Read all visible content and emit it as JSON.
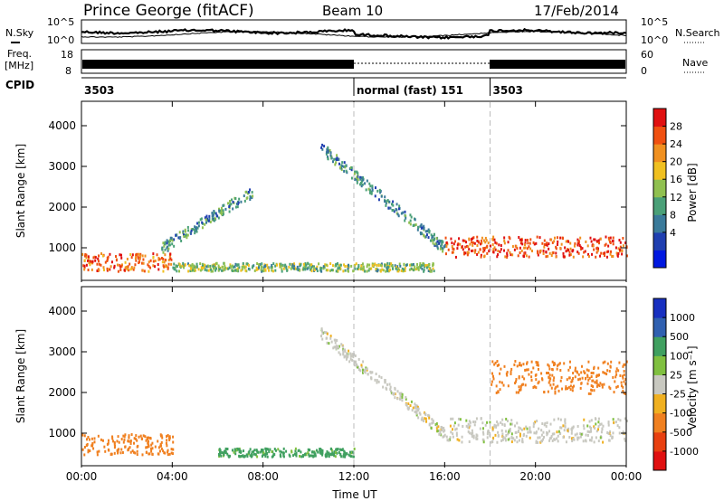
{
  "header": {
    "station": "Prince George (fitACF)",
    "beam": "Beam 10",
    "date": "17/Feb/2014"
  },
  "noise_panel": {
    "left_label": "N.Sky",
    "right_label": "N.Search",
    "left_ticks": [
      "10^5",
      "10^0"
    ],
    "right_ticks": [
      "10^5",
      "10^0"
    ]
  },
  "freq_panel": {
    "left_label_1": "Freq.",
    "left_label_2": "[MHz]",
    "right_label": "Nave",
    "left_ticks": [
      "18",
      "8"
    ],
    "right_ticks": [
      "60",
      "0"
    ]
  },
  "cpid": {
    "label": "CPID",
    "segments": [
      {
        "label": "3503",
        "start_hour": 0
      },
      {
        "label": "normal (fast) 151",
        "start_hour": 12
      },
      {
        "label": "3503",
        "start_hour": 18
      }
    ]
  },
  "time_axis": {
    "label": "Time UT",
    "ticks": [
      "00:00",
      "04:00",
      "08:00",
      "12:00",
      "16:00",
      "20:00",
      "00:00"
    ]
  },
  "power_panel": {
    "ylabel": "Slant Range [km]",
    "yticks": [
      "4000",
      "3000",
      "2000",
      "1000"
    ],
    "colorbar_label": "Power [dB]",
    "colorbar_ticks": [
      "28",
      "24",
      "20",
      "16",
      "12",
      "8",
      "4"
    ],
    "colors": [
      "#0018e0",
      "#1f3fb0",
      "#3a7a9a",
      "#4aa078",
      "#90c050",
      "#f0c020",
      "#f09020",
      "#f05010",
      "#e01010"
    ]
  },
  "velocity_panel": {
    "ylabel": "Slant Range [km]",
    "yticks": [
      "4000",
      "3000",
      "2000",
      "1000"
    ],
    "colorbar_label": "Velocity [m s⁻¹]",
    "colorbar_ticks": [
      "1000",
      "500",
      "100",
      "25",
      "-25",
      "-100",
      "-500",
      "-1000"
    ],
    "colors": [
      "#1830c0",
      "#3060b0",
      "#40a060",
      "#80c040",
      "#c8c8c0",
      "#f0b020",
      "#f08020",
      "#e84010",
      "#e01010"
    ]
  },
  "chart_data": [
    {
      "type": "heatmap",
      "title": "Power",
      "xlabel": "Time UT",
      "ylabel": "Slant Range [km]",
      "xlim_hours": [
        0,
        24
      ],
      "ylim": [
        200,
        4600
      ],
      "colorbar_range": [
        0,
        30
      ],
      "colorbar_label": "Power [dB]",
      "features": [
        {
          "name": "near-range band",
          "hours": [
            0,
            4
          ],
          "range_km": [
            450,
            900
          ],
          "power_db": 24
        },
        {
          "name": "near-range band",
          "hours": [
            4,
            15.5
          ],
          "range_km": [
            450,
            650
          ],
          "power_db": 14
        },
        {
          "name": "rising arc",
          "hours": [
            3.5,
            7.5
          ],
          "range_km": [
            1000,
            2400
          ],
          "power_db": 10
        },
        {
          "name": "descending arc",
          "hours": [
            10.5,
            16
          ],
          "range_km": [
            3500,
            1000
          ],
          "power_db": 10
        },
        {
          "name": "late band",
          "hours": [
            16,
            24
          ],
          "range_km": [
            800,
            1300
          ],
          "power_db": 26
        }
      ]
    },
    {
      "type": "heatmap",
      "title": "Velocity",
      "xlabel": "Time UT",
      "ylabel": "Slant Range [km]",
      "xlim_hours": [
        0,
        24
      ],
      "ylim": [
        200,
        4600
      ],
      "colorbar_label": "Velocity [m s⁻¹]",
      "colorbar_ticks": [
        1000,
        500,
        100,
        25,
        -25,
        -100,
        -500,
        -1000
      ],
      "features": [
        {
          "name": "near-range band",
          "hours": [
            0,
            4
          ],
          "range_km": [
            500,
            1000
          ],
          "velocity": -150
        },
        {
          "name": "near-range band",
          "hours": [
            6,
            12
          ],
          "range_km": [
            450,
            650
          ],
          "velocity": 120
        },
        {
          "name": "descending arc",
          "hours": [
            10.5,
            16
          ],
          "range_km": [
            3500,
            1000
          ],
          "velocity": 0
        },
        {
          "name": "late band",
          "hours": [
            16,
            24
          ],
          "range_km": [
            800,
            1400
          ],
          "velocity": 0
        },
        {
          "name": "far-range patches",
          "hours": [
            18,
            24
          ],
          "range_km": [
            2000,
            2800
          ],
          "velocity": -400
        }
      ]
    }
  ]
}
